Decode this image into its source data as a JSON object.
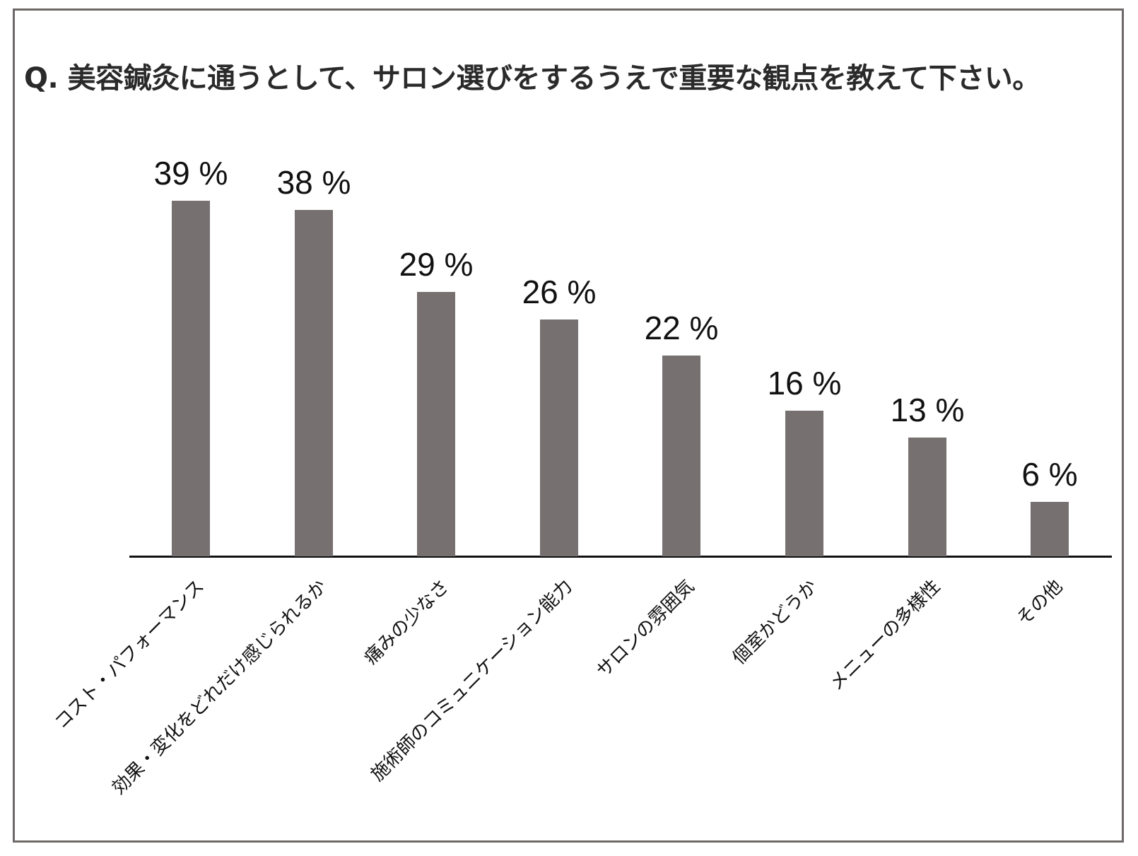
{
  "title": "Q. 美容鍼灸に通うとして、サロン選びをするうえで重要な観点を教えて下さい。",
  "colors": {
    "bar": "#767070",
    "frame": "#6e6868",
    "axis": "#111111"
  },
  "bars": [
    {
      "label": "コスト・パフォーマンス",
      "value": 39,
      "display": "39 %"
    },
    {
      "label": "効果・変化をどれだけ感じられるか",
      "value": 38,
      "display": "38 %"
    },
    {
      "label": "痛みの少なさ",
      "value": 29,
      "display": "29 %"
    },
    {
      "label": "施術師のコミュニケーション能力",
      "value": 26,
      "display": "26 %"
    },
    {
      "label": "サロンの雰囲気",
      "value": 22,
      "display": "22 %"
    },
    {
      "label": "個室かどうか",
      "value": 16,
      "display": "16 %"
    },
    {
      "label": "メニューの多様性",
      "value": 13,
      "display": "13 %"
    },
    {
      "label": "その他",
      "value": 6,
      "display": "6 %"
    }
  ],
  "chart_data": {
    "type": "bar",
    "title": "Q. 美容鍼灸に通うとして、サロン選びをするうえで重要な観点を教えて下さい。",
    "categories": [
      "コスト・パフォーマンス",
      "効果・変化をどれだけ感じられるか",
      "痛みの少なさ",
      "施術師のコミュニケーション能力",
      "サロンの雰囲気",
      "個室かどうか",
      "メニューの多様性",
      "その他"
    ],
    "values": [
      39,
      38,
      29,
      26,
      22,
      16,
      13,
      6
    ],
    "value_labels": [
      "39 %",
      "38 %",
      "29 %",
      "26 %",
      "22 %",
      "16 %",
      "13 %",
      "6 %"
    ],
    "xlabel": "",
    "ylabel": "",
    "unit": "%",
    "ylim": [
      0,
      40
    ],
    "grid": false,
    "legend": null,
    "x_tick_rotation": -45
  }
}
